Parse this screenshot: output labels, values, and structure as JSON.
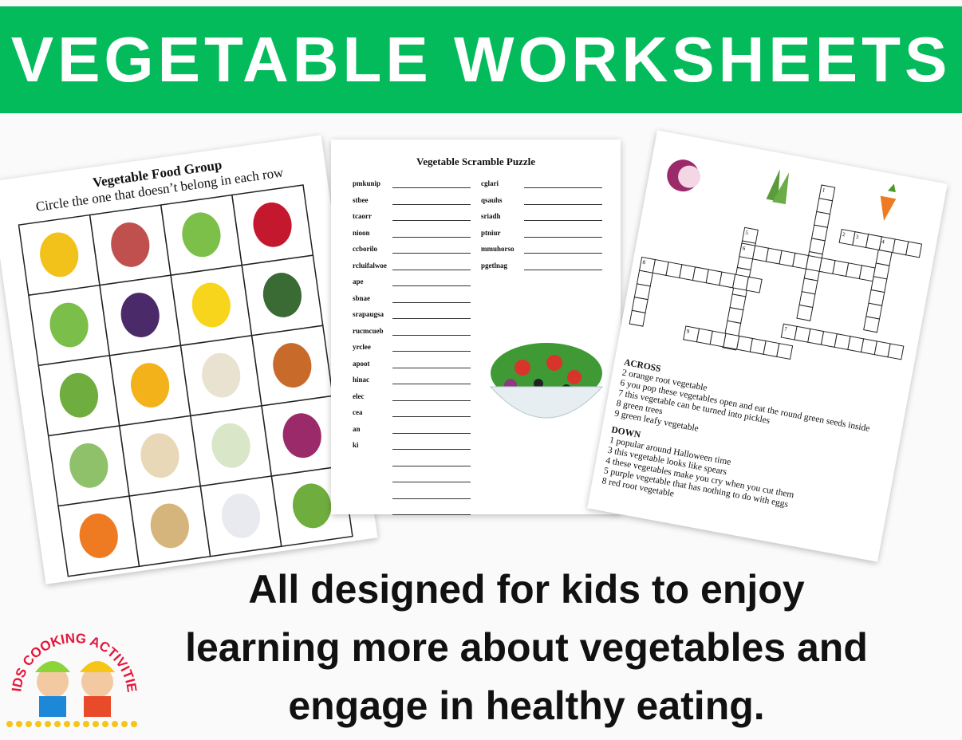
{
  "banner": {
    "title": "VEGETABLE WORKSHEETS"
  },
  "food_group_sheet": {
    "title": "Vegetable Food Group",
    "instruction": "Circle the one that doesn’t belong in each row"
  },
  "scramble_sheet": {
    "title": "Vegetable Scramble Puzzle",
    "left_words": [
      "pmkunip",
      "stbee",
      "tcaorr",
      "nioon",
      "ccborilo",
      "rcluifalwoe",
      "ape",
      "sbnae",
      "srapaugsa",
      "rucmcueb",
      "yrclee",
      "apoot",
      "hinac",
      "elec",
      "cea",
      "an",
      "ki"
    ],
    "right_words": [
      "cglari",
      "qsauhs",
      "sriadh",
      "ptniur",
      "mmuhorso",
      "pgetlnag"
    ]
  },
  "crossword_sheet": {
    "numbers": [
      "1",
      "2",
      "3",
      "4",
      "5",
      "6",
      "7",
      "8",
      "9"
    ],
    "across_heading": "ACROSS",
    "across_clues": [
      "2 orange root vegetable",
      "6 you pop these vegetables open and eat the round green seeds inside",
      "7 this vegetable can be turned into pickles",
      "8 green trees",
      "9 green leafy vegetable"
    ],
    "down_heading": "DOWN",
    "down_clues": [
      "1 popular around Halloween time",
      "3 this vegetable looks like spears",
      "4 these vegetables make you cry when you cut them",
      "5 purple vegetable that has nothing to do with eggs",
      "8 red root vegetable"
    ]
  },
  "tagline": {
    "lines": [
      "All designed for kids to enjoy",
      "learning more about vegetables and",
      "engage in healthy eating."
    ]
  },
  "logo": {
    "text": "KIDS COOKING ACTIVITIES"
  }
}
